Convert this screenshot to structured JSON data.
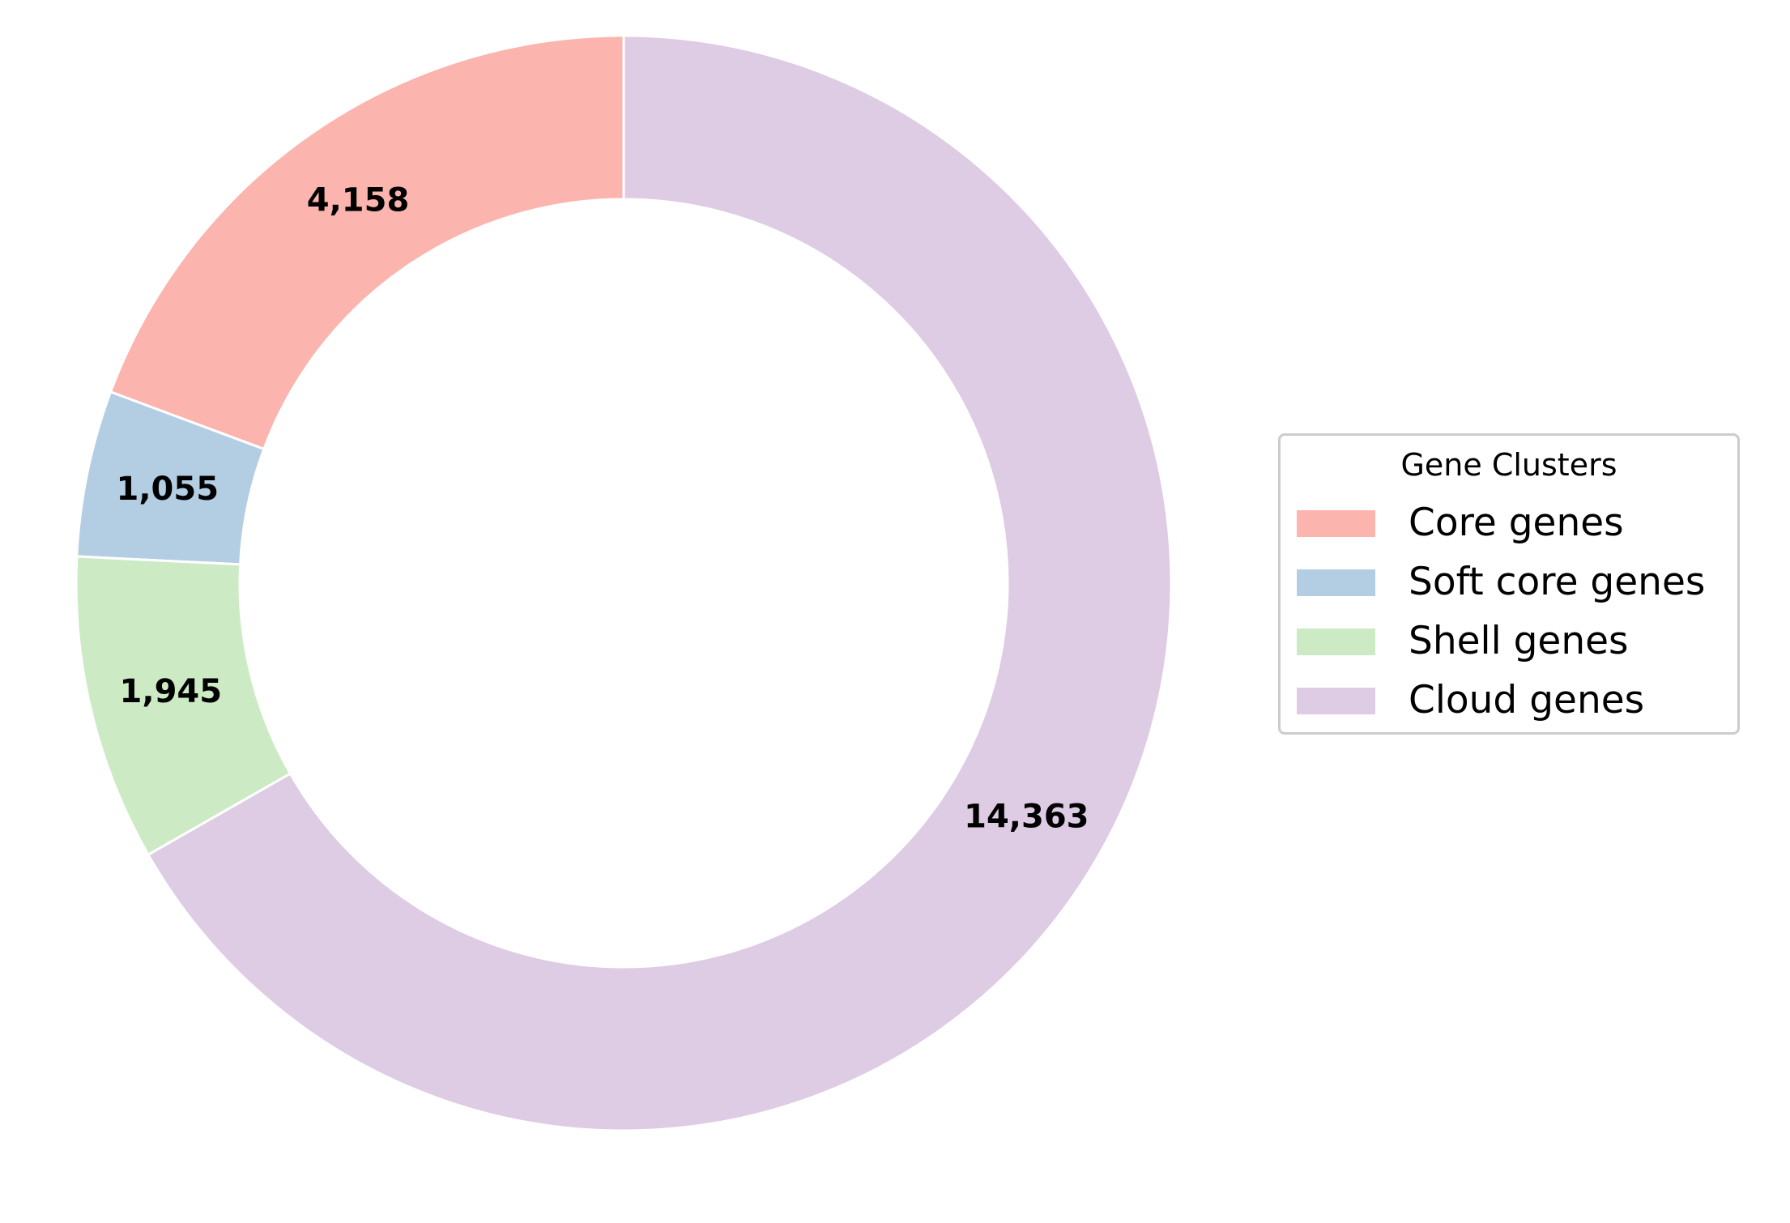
{
  "chart_data": {
    "type": "pie",
    "style": "donut",
    "title": "",
    "categories": [
      "Core genes",
      "Soft core genes",
      "Shell genes",
      "Cloud genes"
    ],
    "values": [
      4158,
      1055,
      1945,
      14363
    ],
    "value_labels": [
      "4,158",
      "1,055",
      "1,945",
      "14,363"
    ],
    "colors": [
      "#fbb4ae",
      "#b3cde3",
      "#ccebc5",
      "#decbe4"
    ],
    "start_angle_deg": 90,
    "direction": "counterclockwise",
    "edge_color": "#ffffff",
    "legend": {
      "title": "Gene Clusters",
      "placement": "right",
      "items": [
        "Core genes",
        "Soft core genes",
        "Shell genes",
        "Cloud genes"
      ]
    }
  }
}
